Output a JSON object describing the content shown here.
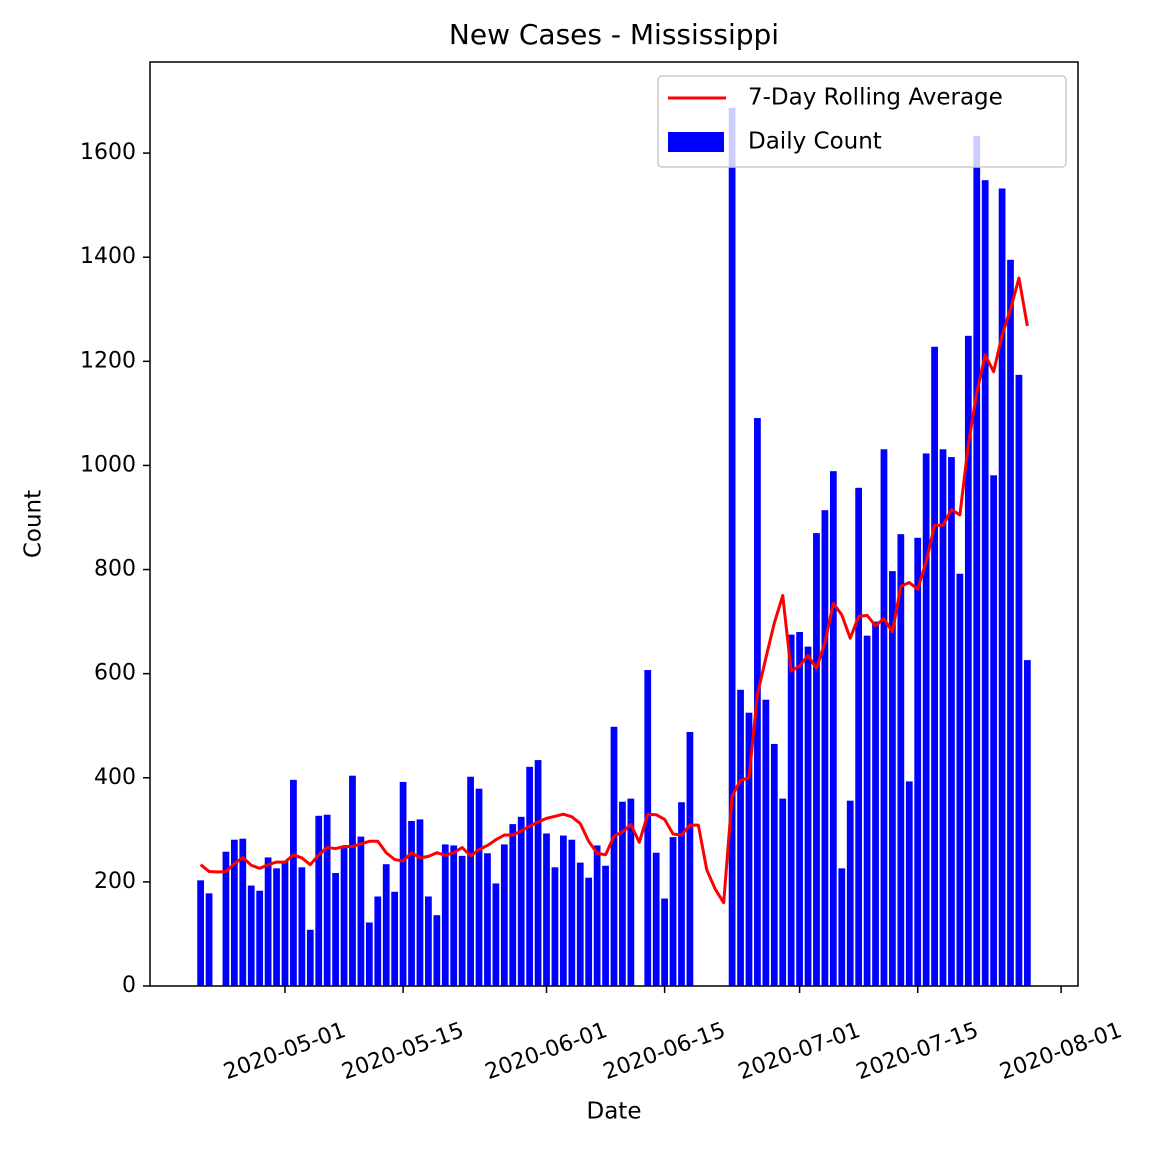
{
  "chart_data": {
    "type": "bar",
    "title": "New Cases - Mississippi",
    "x_label": "Date",
    "y_label": "Count",
    "x": [
      "2020-04-21",
      "2020-04-22",
      "2020-04-23",
      "2020-04-24",
      "2020-04-25",
      "2020-04-26",
      "2020-04-27",
      "2020-04-28",
      "2020-04-29",
      "2020-04-30",
      "2020-05-01",
      "2020-05-02",
      "2020-05-03",
      "2020-05-04",
      "2020-05-05",
      "2020-05-06",
      "2020-05-07",
      "2020-05-08",
      "2020-05-09",
      "2020-05-10",
      "2020-05-11",
      "2020-05-12",
      "2020-05-13",
      "2020-05-14",
      "2020-05-15",
      "2020-05-16",
      "2020-05-17",
      "2020-05-18",
      "2020-05-19",
      "2020-05-20",
      "2020-05-21",
      "2020-05-22",
      "2020-05-23",
      "2020-05-24",
      "2020-05-25",
      "2020-05-26",
      "2020-05-27",
      "2020-05-28",
      "2020-05-29",
      "2020-05-30",
      "2020-05-31",
      "2020-06-01",
      "2020-06-02",
      "2020-06-03",
      "2020-06-04",
      "2020-06-05",
      "2020-06-06",
      "2020-06-07",
      "2020-06-08",
      "2020-06-09",
      "2020-06-10",
      "2020-06-11",
      "2020-06-12",
      "2020-06-13",
      "2020-06-14",
      "2020-06-15",
      "2020-06-16",
      "2020-06-17",
      "2020-06-18",
      "2020-06-19",
      "2020-06-20",
      "2020-06-21",
      "2020-06-22",
      "2020-06-23",
      "2020-06-24",
      "2020-06-25",
      "2020-06-26",
      "2020-06-27",
      "2020-06-28",
      "2020-06-29",
      "2020-06-30",
      "2020-07-01",
      "2020-07-02",
      "2020-07-03",
      "2020-07-04",
      "2020-07-05",
      "2020-07-06",
      "2020-07-07",
      "2020-07-08",
      "2020-07-09",
      "2020-07-10",
      "2020-07-11",
      "2020-07-12",
      "2020-07-13",
      "2020-07-14",
      "2020-07-15",
      "2020-07-16",
      "2020-07-17",
      "2020-07-18",
      "2020-07-19",
      "2020-07-20",
      "2020-07-21",
      "2020-07-22",
      "2020-07-23",
      "2020-07-24",
      "2020-07-25",
      "2020-07-26",
      "2020-07-27",
      "2020-07-28"
    ],
    "series": [
      {
        "name": "7-Day Rolling Average",
        "kind": "line",
        "color": "#ff0000",
        "values": [
          233,
          220,
          219,
          220,
          235,
          247,
          232,
          226,
          233,
          238,
          238,
          252,
          246,
          233,
          252,
          266,
          264,
          268,
          268,
          273,
          278,
          278,
          256,
          243,
          240,
          256,
          246,
          249,
          256,
          251,
          256,
          266,
          250,
          262,
          270,
          281,
          290,
          290,
          298,
          307,
          315,
          322,
          326,
          330,
          325,
          312,
          278,
          255,
          252,
          288,
          296,
          310,
          276,
          330,
          329,
          320,
          292,
          290,
          309,
          309,
          223,
          186,
          160,
          365,
          395,
          400,
          560,
          630,
          697,
          750,
          605,
          615,
          635,
          610,
          660,
          735,
          713,
          668,
          710,
          712,
          692,
          706,
          680,
          768,
          775,
          762,
          815,
          885,
          885,
          915,
          905,
          1040,
          1140,
          1212,
          1180,
          1250,
          1300,
          1360,
          1268
        ]
      },
      {
        "name": "Daily Count",
        "kind": "bar",
        "color": "#0000ff",
        "values": [
          203,
          178,
          0,
          258,
          281,
          283,
          193,
          183,
          247,
          226,
          240,
          396,
          228,
          108,
          327,
          329,
          217,
          265,
          404,
          287,
          122,
          172,
          234,
          181,
          392,
          317,
          320,
          172,
          136,
          272,
          270,
          250,
          402,
          379,
          255,
          197,
          272,
          311,
          325,
          421,
          434,
          293,
          228,
          289,
          281,
          237,
          208,
          270,
          231,
          498,
          354,
          360,
          0,
          607,
          256,
          168,
          286,
          353,
          488,
          0,
          0,
          0,
          0,
          1687,
          569,
          525,
          1091,
          550,
          465,
          360,
          675,
          680,
          652,
          870,
          914,
          989,
          226,
          356,
          957,
          673,
          700,
          1031,
          797,
          868,
          393,
          861,
          1023,
          1228,
          1031,
          1016,
          792,
          1249,
          1633,
          1548,
          981,
          1532,
          1395,
          1174,
          626
        ]
      }
    ],
    "xlim": [
      "2020-04-15",
      "2020-08-03"
    ],
    "xticks": [
      "2020-05-01",
      "2020-05-15",
      "2020-06-01",
      "2020-06-15",
      "2020-07-01",
      "2020-07-15",
      "2020-08-01"
    ],
    "ylim": [
      0,
      1775
    ],
    "yticks": [
      0,
      200,
      400,
      600,
      800,
      1000,
      1200,
      1400,
      1600
    ],
    "legend": "upper right"
  }
}
